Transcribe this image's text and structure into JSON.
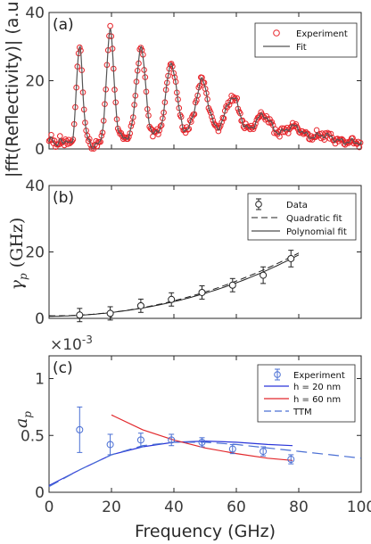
{
  "chart_data": [
    {
      "type": "line",
      "panel_label": "(a)",
      "ylabel": "|fft(Reflectivity)| (a.u.)",
      "ylim": [
        0,
        40
      ],
      "yticks": [
        "0",
        "20",
        "40"
      ],
      "xlim": [
        0,
        100
      ],
      "grid": false,
      "legend_position": "top-right",
      "series": [
        {
          "name": "Experiment",
          "marker": "open-circle",
          "color": "#e8242a"
        },
        {
          "name": "Fit",
          "line": "solid",
          "color": "#555555"
        }
      ],
      "peaks": {
        "x": [
          9.8,
          19.6,
          29.4,
          39.2,
          49.0,
          58.8,
          68.6,
          78.4,
          88.2,
          98.0
        ],
        "y": [
          30.5,
          33.5,
          29.0,
          24.5,
          20.0,
          15.5,
          10.5,
          7.5,
          5.5,
          3.8
        ],
        "baseline": [
          2.0,
          2.0,
          3.0,
          4.0,
          5.0,
          5.0,
          4.5,
          4.0,
          3.5,
          3.0
        ]
      }
    },
    {
      "type": "scatter",
      "panel_label": "(b)",
      "ylabel": "γp (GHz)",
      "ylim": [
        0,
        40
      ],
      "yticks": [
        "0",
        "20",
        "40"
      ],
      "xlim": [
        0,
        100
      ],
      "grid": false,
      "legend_position": "top-right",
      "data": {
        "name": "Data",
        "x": [
          9.8,
          19.6,
          29.4,
          39.2,
          49.0,
          58.8,
          68.6,
          77.5
        ],
        "y": [
          1.0,
          1.5,
          3.8,
          5.7,
          7.8,
          10.0,
          13.0,
          18.0
        ],
        "err": [
          2.0,
          2.0,
          2.0,
          2.0,
          2.0,
          2.0,
          2.5,
          2.5
        ]
      },
      "fits": [
        {
          "name": "Quadratic fit",
          "line": "dashed"
        },
        {
          "name": "Polynomial fit",
          "line": "solid"
        }
      ]
    },
    {
      "type": "line",
      "panel_label": "(c)",
      "ylabel": "ap",
      "exponent_label": "×10",
      "exponent_power": "-3",
      "ylim": [
        0,
        1.2
      ],
      "yticks": [
        "0",
        "0.5",
        "1"
      ],
      "xlabel": "Frequency (GHz)",
      "xlim": [
        0,
        100
      ],
      "xticks": [
        "0",
        "20",
        "40",
        "60",
        "80",
        "100"
      ],
      "grid": false,
      "legend_position": "top-right",
      "experiment": {
        "name": "Experiment",
        "color": "#4a6fd4",
        "x": [
          9.8,
          19.6,
          29.4,
          39.2,
          49.0,
          58.8,
          68.6,
          77.5
        ],
        "y": [
          0.55,
          0.42,
          0.46,
          0.46,
          0.44,
          0.38,
          0.36,
          0.29
        ],
        "err": [
          0.2,
          0.09,
          0.06,
          0.05,
          0.04,
          0.04,
          0.04,
          0.04
        ]
      },
      "series": [
        {
          "name": "h = 20 nm",
          "color": "#2a35d9",
          "line": "solid",
          "x": [
            0,
            10,
            20,
            30,
            40,
            50,
            60,
            70,
            78
          ],
          "y": [
            0.06,
            0.2,
            0.33,
            0.4,
            0.44,
            0.45,
            0.44,
            0.42,
            0.41
          ]
        },
        {
          "name": "h = 60 nm",
          "color": "#e2282c",
          "line": "solid",
          "x": [
            20,
            30,
            40,
            50,
            60,
            70,
            78
          ],
          "y": [
            0.68,
            0.55,
            0.46,
            0.39,
            0.34,
            0.3,
            0.28
          ]
        },
        {
          "name": "TTM",
          "color": "#4a6fd4",
          "line": "dashed",
          "x": [
            0,
            10,
            20,
            30,
            40,
            50,
            60,
            70,
            80,
            90,
            100
          ],
          "y": [
            0.05,
            0.2,
            0.33,
            0.41,
            0.44,
            0.44,
            0.42,
            0.39,
            0.36,
            0.33,
            0.3
          ]
        }
      ]
    }
  ]
}
